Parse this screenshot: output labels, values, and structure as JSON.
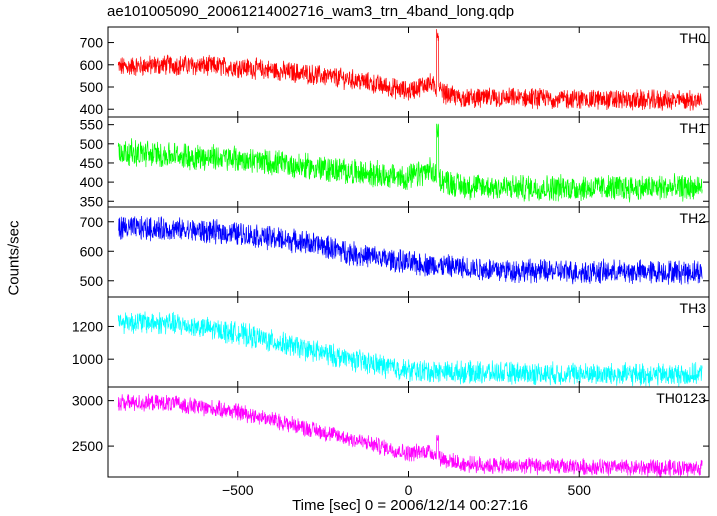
{
  "title": "ae101005090_20061214002716_wam3_trn_4band_long.qdp",
  "chart_data": {
    "type": "line",
    "ylabel": "Counts/sec",
    "xlabel": "Time [sec] 0 = 2006/12/14 00:27:16",
    "xlim": [
      -880,
      880
    ],
    "xticks": [
      -500,
      0,
      500
    ],
    "panels": [
      {
        "name": "TH0",
        "color": "#ff0000",
        "ylim": [
          365,
          770
        ],
        "yticks": [
          400,
          500,
          600,
          700
        ],
        "x": [
          -850,
          -700,
          -500,
          -300,
          -150,
          0,
          60,
          90,
          150,
          300,
          500,
          700,
          860
        ],
        "y": [
          590,
          600,
          590,
          560,
          530,
          480,
          520,
          480,
          450,
          450,
          445,
          440,
          440
        ],
        "noise": 40,
        "spike": {
          "x": 85,
          "y": 765
        }
      },
      {
        "name": "TH1",
        "color": "#00ff00",
        "ylim": [
          335,
          570
        ],
        "yticks": [
          350,
          400,
          450,
          500,
          550
        ],
        "x": [
          -850,
          -700,
          -500,
          -300,
          -150,
          0,
          60,
          90,
          150,
          300,
          500,
          700,
          860
        ],
        "y": [
          480,
          470,
          460,
          440,
          425,
          410,
          430,
          410,
          390,
          385,
          385,
          385,
          385
        ],
        "noise": 30,
        "spike": {
          "x": 85,
          "y": 555
        }
      },
      {
        "name": "TH2",
        "color": "#0000ff",
        "ylim": [
          445,
          750
        ],
        "yticks": [
          500,
          600,
          700
        ],
        "x": [
          -850,
          -700,
          -500,
          -300,
          -150,
          0,
          150,
          300,
          500,
          700,
          860
        ],
        "y": [
          680,
          675,
          660,
          630,
          590,
          560,
          545,
          535,
          530,
          530,
          530
        ],
        "noise": 35,
        "spike": null
      },
      {
        "name": "TH3",
        "color": "#00ffff",
        "ylim": [
          830,
          1380
        ],
        "yticks": [
          1000,
          1200
        ],
        "x": [
          -850,
          -700,
          -500,
          -300,
          -150,
          0,
          150,
          300,
          500,
          700,
          860
        ],
        "y": [
          1230,
          1220,
          1160,
          1060,
          990,
          930,
          920,
          915,
          910,
          905,
          905
        ],
        "noise": 60,
        "spike": null
      },
      {
        "name": "TH0123",
        "color": "#ff00ff",
        "ylim": [
          2160,
          3150
        ],
        "yticks": [
          2500,
          3000
        ],
        "x": [
          -850,
          -700,
          -500,
          -300,
          -150,
          0,
          60,
          90,
          150,
          300,
          500,
          700,
          860
        ],
        "y": [
          2980,
          2970,
          2880,
          2700,
          2560,
          2420,
          2450,
          2380,
          2300,
          2280,
          2270,
          2260,
          2260
        ],
        "noise": 80,
        "spike": {
          "x": 85,
          "y": 2630
        }
      }
    ]
  }
}
